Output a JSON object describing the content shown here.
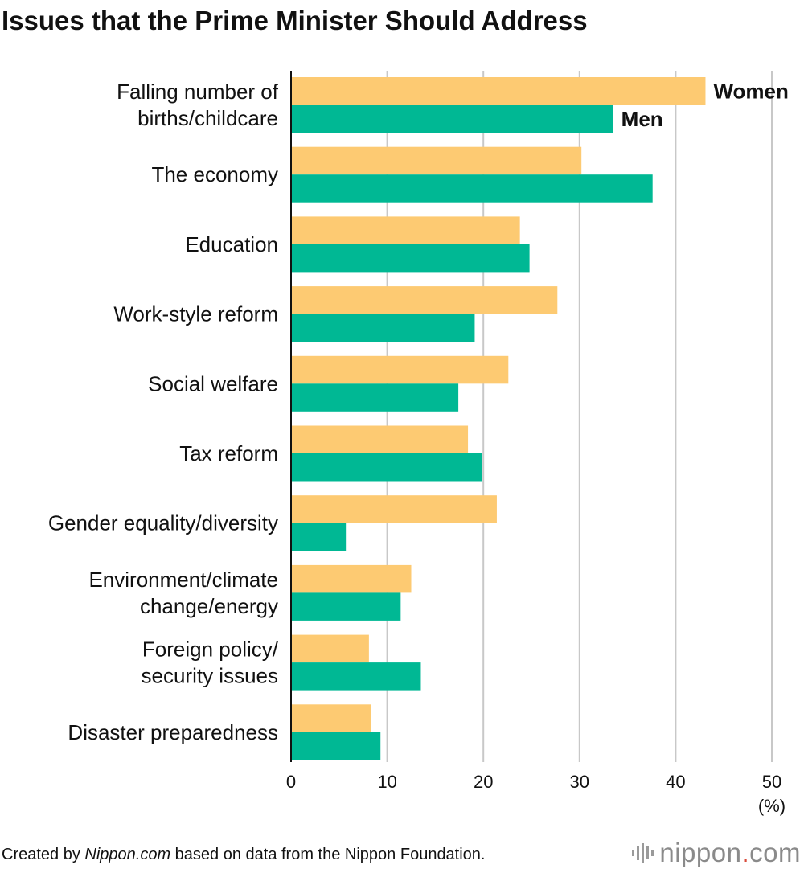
{
  "colors": {
    "women": "#fdca72",
    "men": "#00b894",
    "grid": "#c8c8c8",
    "axis": "#111111"
  },
  "footer": {
    "prefix": "Created by ",
    "site": "Nippon.com",
    "suffix": " based on data from the Nippon Foundation."
  },
  "logo": {
    "name": "nippon",
    "dot": ".",
    "tld": "com",
    "icon": "sound-wave-icon"
  },
  "chart_data": {
    "type": "bar",
    "orientation": "horizontal",
    "title": "Issues that the Prime Minister Should Address",
    "unit": "(%)",
    "xlim": [
      0,
      50
    ],
    "ticks": [
      0,
      10,
      20,
      30,
      40,
      50
    ],
    "grid": true,
    "categories": [
      [
        "Falling number of",
        "births/childcare"
      ],
      [
        "The economy"
      ],
      [
        "Education"
      ],
      [
        "Work-style reform"
      ],
      [
        "Social welfare"
      ],
      [
        "Tax reform"
      ],
      [
        "Gender equality/diversity"
      ],
      [
        "Environment/climate",
        "change/energy"
      ],
      [
        "Foreign policy/",
        "security issues"
      ],
      [
        "Disaster preparedness"
      ]
    ],
    "series": [
      {
        "name": "Women",
        "values": [
          43.1,
          30.2,
          23.8,
          27.7,
          22.6,
          18.4,
          21.4,
          12.5,
          8.1,
          8.3
        ]
      },
      {
        "name": "Men",
        "values": [
          33.5,
          37.6,
          24.8,
          19.1,
          17.4,
          19.9,
          5.7,
          11.4,
          13.5,
          9.3
        ]
      }
    ]
  }
}
